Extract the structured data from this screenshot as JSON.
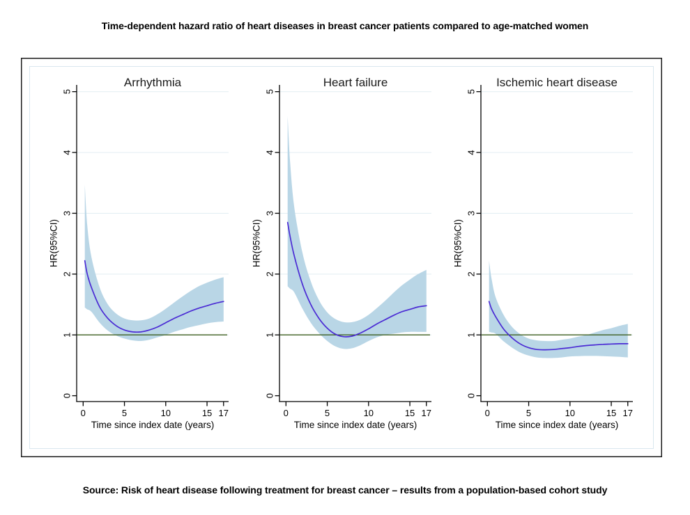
{
  "title": "Time-dependent hazard ratio of heart diseases in breast cancer patients compared to age-matched women",
  "source": "Source: Risk of heart disease following treatment for breast cancer – results from a population-based cohort study",
  "colors": {
    "hr_line": "#4a2ad4",
    "ci_band": "#b9d6e6",
    "reference_line": "#3c5e1e",
    "gridline": "#e2edf2",
    "axis": "#000000",
    "frame": "#1c1c1c",
    "inner_border": "#d9e7ef"
  },
  "chart_data": [
    {
      "type": "line",
      "title": "Arrhythmia",
      "xlabel": "Time since index date (years)",
      "ylabel": "HR(95%CI)",
      "xticks": [
        0,
        5,
        10,
        15,
        17
      ],
      "yticks": [
        0,
        1,
        2,
        3,
        4,
        5
      ],
      "xlim": [
        -0.8,
        18.4
      ],
      "ylim": [
        0,
        5.1
      ],
      "grid": true,
      "legend": "none",
      "refline_y": 1,
      "x": [
        0.2,
        0.5,
        1,
        2,
        3,
        4,
        5,
        6,
        7,
        8,
        9,
        10,
        11,
        12,
        13,
        14,
        15,
        16,
        17
      ],
      "series": [
        {
          "name": "HR",
          "values": [
            2.22,
            2.0,
            1.78,
            1.46,
            1.27,
            1.15,
            1.08,
            1.05,
            1.05,
            1.08,
            1.13,
            1.2,
            1.27,
            1.33,
            1.39,
            1.44,
            1.48,
            1.52,
            1.55
          ]
        },
        {
          "name": "CI upper",
          "values": [
            3.47,
            2.8,
            2.28,
            1.78,
            1.5,
            1.35,
            1.27,
            1.24,
            1.24,
            1.27,
            1.34,
            1.43,
            1.53,
            1.63,
            1.72,
            1.8,
            1.86,
            1.91,
            1.95
          ]
        },
        {
          "name": "CI lower",
          "values": [
            1.45,
            1.42,
            1.38,
            1.2,
            1.07,
            0.99,
            0.94,
            0.91,
            0.9,
            0.92,
            0.96,
            1.0,
            1.05,
            1.09,
            1.13,
            1.16,
            1.19,
            1.21,
            1.22
          ]
        }
      ]
    },
    {
      "type": "line",
      "title": "Heart failure",
      "xlabel": "Time since index date (years)",
      "ylabel": "HR(95%CI)",
      "xticks": [
        0,
        5,
        10,
        15,
        17
      ],
      "yticks": [
        0,
        1,
        2,
        3,
        4,
        5
      ],
      "xlim": [
        -0.8,
        18.4
      ],
      "ylim": [
        0,
        5.1
      ],
      "grid": true,
      "legend": "none",
      "refline_y": 1,
      "x": [
        0.2,
        0.5,
        1,
        2,
        3,
        4,
        5,
        6,
        7,
        8,
        9,
        10,
        11,
        12,
        13,
        14,
        15,
        16,
        17
      ],
      "series": [
        {
          "name": "HR",
          "values": [
            2.85,
            2.62,
            2.3,
            1.83,
            1.5,
            1.27,
            1.11,
            1.01,
            0.97,
            0.98,
            1.03,
            1.1,
            1.18,
            1.25,
            1.32,
            1.38,
            1.42,
            1.46,
            1.48
          ]
        },
        {
          "name": "CI upper",
          "values": [
            4.6,
            3.85,
            3.1,
            2.35,
            1.88,
            1.57,
            1.37,
            1.26,
            1.21,
            1.21,
            1.25,
            1.33,
            1.44,
            1.56,
            1.69,
            1.81,
            1.91,
            2.0,
            2.07
          ]
        },
        {
          "name": "CI lower",
          "values": [
            1.8,
            1.76,
            1.7,
            1.43,
            1.2,
            1.03,
            0.9,
            0.81,
            0.77,
            0.78,
            0.83,
            0.9,
            0.96,
            1.0,
            1.02,
            1.04,
            1.05,
            1.05,
            1.05
          ]
        }
      ]
    },
    {
      "type": "line",
      "title": "Ischemic heart disease",
      "xlabel": "Time since index date (years)",
      "ylabel": "HR(95%CI)",
      "xticks": [
        0,
        5,
        10,
        15,
        17
      ],
      "yticks": [
        0,
        1,
        2,
        3,
        4,
        5
      ],
      "xlim": [
        -0.8,
        18.4
      ],
      "ylim": [
        0,
        5.1
      ],
      "grid": true,
      "legend": "none",
      "refline_y": 1,
      "x": [
        0.2,
        0.5,
        1,
        2,
        3,
        4,
        5,
        6,
        7,
        8,
        9,
        10,
        11,
        12,
        13,
        14,
        15,
        16,
        17
      ],
      "series": [
        {
          "name": "HR",
          "values": [
            1.55,
            1.43,
            1.3,
            1.09,
            0.95,
            0.85,
            0.79,
            0.76,
            0.755,
            0.76,
            0.775,
            0.79,
            0.81,
            0.825,
            0.835,
            0.845,
            0.85,
            0.855,
            0.855
          ]
        },
        {
          "name": "CI upper",
          "values": [
            2.22,
            1.93,
            1.62,
            1.32,
            1.13,
            1.01,
            0.94,
            0.91,
            0.9,
            0.9,
            0.92,
            0.94,
            0.97,
            1.0,
            1.04,
            1.08,
            1.11,
            1.15,
            1.18
          ]
        },
        {
          "name": "CI lower",
          "values": [
            1.05,
            1.04,
            1.02,
            0.89,
            0.79,
            0.71,
            0.66,
            0.63,
            0.62,
            0.62,
            0.63,
            0.645,
            0.65,
            0.655,
            0.655,
            0.65,
            0.645,
            0.64,
            0.63
          ]
        }
      ]
    }
  ]
}
